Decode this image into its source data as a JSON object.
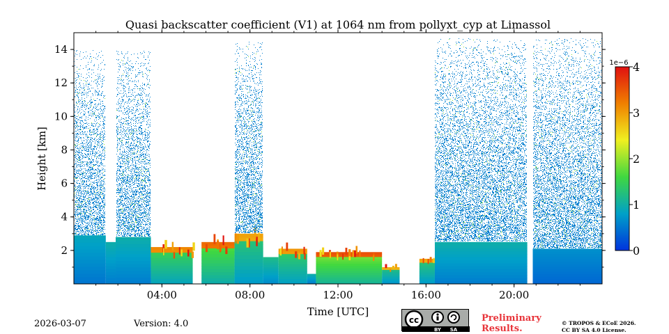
{
  "chart_data": {
    "type": "heatmap",
    "title": "Quasi backscatter coefficient (V1) at 1064 nm from pollyxt_cyp at Limassol",
    "xlabel": "Time [UTC]",
    "ylabel": "Height [km]",
    "xlim": [
      0,
      24
    ],
    "ylim": [
      0,
      15
    ],
    "x_ticks": [
      4,
      8,
      12,
      16,
      20
    ],
    "x_tick_labels": [
      "04:00",
      "08:00",
      "12:00",
      "16:00",
      "20:00"
    ],
    "y_ticks": [
      2,
      4,
      6,
      8,
      10,
      12,
      14
    ],
    "y_tick_labels": [
      "2",
      "4",
      "6",
      "8",
      "10",
      "12",
      "14"
    ],
    "colorbar": {
      "label_exponent": "1e−6",
      "ticks": [
        0,
        1,
        2,
        3,
        4
      ],
      "tick_labels": [
        "0",
        "1",
        "2",
        "3",
        "4"
      ],
      "range": [
        0,
        4
      ],
      "colors": [
        "#0033dd",
        "#00a0c8",
        "#40d840",
        "#f0f020",
        "#f08000",
        "#e01010"
      ]
    },
    "profiles": [
      {
        "t0": 0.0,
        "t1": 1.45,
        "layer_top": 2.9,
        "layer_value": 0.9,
        "noise_top": 14.0,
        "cloud": false
      },
      {
        "t0": 1.45,
        "t1": 1.9,
        "layer_top": 2.5,
        "layer_value": 1.0,
        "noise_top": 0,
        "cloud": false
      },
      {
        "t0": 1.9,
        "t1": 3.5,
        "layer_top": 2.8,
        "layer_value": 1.0,
        "noise_top": 14.0,
        "cloud": false
      },
      {
        "t0": 3.5,
        "t1": 5.4,
        "layer_top": 2.2,
        "layer_value": 1.6,
        "noise_top": 0,
        "cloud": true
      },
      {
        "t0": 5.4,
        "t1": 5.8,
        "layer_top": 0,
        "layer_value": 0,
        "noise_top": 0,
        "cloud": false
      },
      {
        "t0": 5.8,
        "t1": 7.3,
        "layer_top": 2.5,
        "layer_value": 1.8,
        "noise_top": 0,
        "cloud": true
      },
      {
        "t0": 7.3,
        "t1": 8.6,
        "layer_top": 3.0,
        "layer_value": 1.4,
        "noise_top": 14.5,
        "cloud": true
      },
      {
        "t0": 8.6,
        "t1": 9.3,
        "layer_top": 1.6,
        "layer_value": 1.2,
        "noise_top": 0,
        "cloud": false
      },
      {
        "t0": 9.3,
        "t1": 10.6,
        "layer_top": 2.1,
        "layer_value": 1.5,
        "noise_top": 0,
        "cloud": true
      },
      {
        "t0": 10.6,
        "t1": 11.0,
        "layer_top": 0.6,
        "layer_value": 1.0,
        "noise_top": 0,
        "cloud": false
      },
      {
        "t0": 11.0,
        "t1": 14.0,
        "layer_top": 1.9,
        "layer_value": 2.0,
        "noise_top": 0,
        "cloud": true
      },
      {
        "t0": 14.0,
        "t1": 14.8,
        "layer_top": 1.0,
        "layer_value": 1.3,
        "noise_top": 0,
        "cloud": true
      },
      {
        "t0": 14.8,
        "t1": 15.7,
        "layer_top": 0,
        "layer_value": 0,
        "noise_top": 0,
        "cloud": false
      },
      {
        "t0": 15.7,
        "t1": 16.4,
        "layer_top": 1.5,
        "layer_value": 1.4,
        "noise_top": 0,
        "cloud": true
      },
      {
        "t0": 16.4,
        "t1": 20.6,
        "layer_top": 2.5,
        "layer_value": 1.0,
        "noise_top": 14.7,
        "cloud": false
      },
      {
        "t0": 20.6,
        "t1": 20.85,
        "layer_top": 0,
        "layer_value": 0,
        "noise_top": 0,
        "cloud": false
      },
      {
        "t0": 20.85,
        "t1": 24.0,
        "layer_top": 2.1,
        "layer_value": 0.7,
        "noise_top": 14.7,
        "cloud": false
      }
    ]
  },
  "footer": {
    "date": "2026-03-07",
    "version": "Version: 4.0",
    "license_by": "BY",
    "license_sa": "SA",
    "prelim_line1": "Preliminary",
    "prelim_line2": "Results.",
    "copyright_line1": "© TROPOS & ECoE 2026.",
    "copyright_line2": "CC BY SA 4.0 License."
  }
}
